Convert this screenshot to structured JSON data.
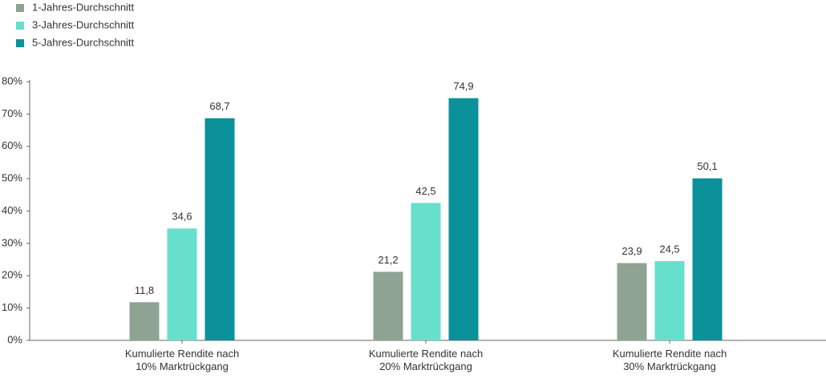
{
  "chart_data": {
    "type": "bar",
    "categories": [
      "Kumulierte Rendite nach\n10% Marktrückgang",
      "Kumulierte Rendite nach\n20% Marktrückgang",
      "Kumulierte Rendite nach\n30% Marktrückgang"
    ],
    "series": [
      {
        "name": "1-Jahres-Durchschnitt",
        "color": "#8fa393",
        "values": [
          11.8,
          21.2,
          23.9
        ],
        "value_labels": [
          "11,8",
          "21,2",
          "23,9"
        ]
      },
      {
        "name": "3-Jahres-Durchschnitt",
        "color": "#66e0cc",
        "values": [
          34.6,
          42.5,
          24.5
        ],
        "value_labels": [
          "34,6",
          "42,5",
          "24,5"
        ]
      },
      {
        "name": "5-Jahres-Durchschnitt",
        "color": "#0a9199",
        "values": [
          68.7,
          74.9,
          50.1
        ],
        "value_labels": [
          "68,7",
          "74,9",
          "50,1"
        ]
      }
    ],
    "ylim": [
      0,
      80
    ],
    "yticks": [
      {
        "value": 0,
        "label": "0%"
      },
      {
        "value": 10,
        "label": "10%"
      },
      {
        "value": 20,
        "label": "20%"
      },
      {
        "value": 30,
        "label": "30%"
      },
      {
        "value": 40,
        "label": "40%"
      },
      {
        "value": 50,
        "label": "50%"
      },
      {
        "value": 60,
        "label": "60%"
      },
      {
        "value": 70,
        "label": "70%"
      },
      {
        "value": 80,
        "label": "80%"
      }
    ],
    "legend": "top-left",
    "grid": false
  }
}
